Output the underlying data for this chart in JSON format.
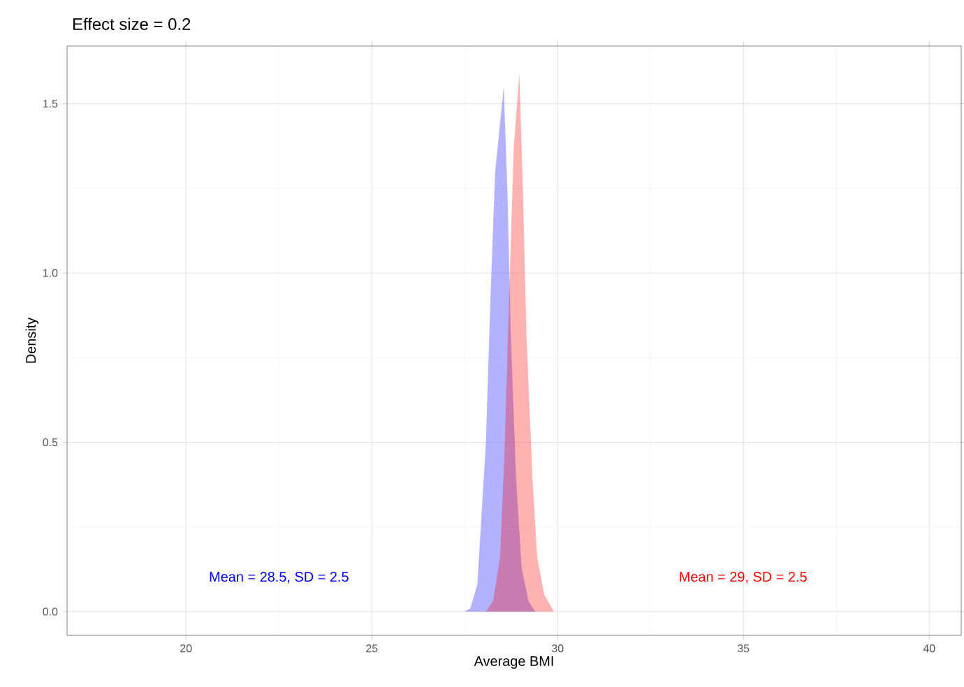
{
  "chart_data": {
    "type": "area",
    "title": "Effect size = 0.2",
    "xlabel": "Average BMI",
    "ylabel": "Density",
    "xlim": [
      16.8,
      40.86
    ],
    "ylim": [
      -0.07,
      1.67
    ],
    "xticks": [
      20,
      25,
      30,
      35,
      40
    ],
    "yticks": [
      {
        "value": 0,
        "label": "0.0"
      },
      {
        "value": 0.5,
        "label": "0.5"
      },
      {
        "value": 1,
        "label": "1.0"
      },
      {
        "value": 1.5,
        "label": "1.5"
      }
    ],
    "grid": true,
    "series": [
      {
        "color": "#0000ff",
        "x": [
          27.5,
          27.65,
          27.84,
          28.07,
          28.2,
          28.32,
          28.55,
          28.65,
          28.74,
          28.88,
          29.03,
          29.22,
          29.4
        ],
        "values": [
          0,
          0.01,
          0.08,
          0.5,
          0.95,
          1.3,
          1.55,
          1.24,
          0.82,
          0.4,
          0.13,
          0.03,
          0
        ]
      },
      {
        "color": "#ff0000",
        "x": [
          28.07,
          28.26,
          28.45,
          28.57,
          28.7,
          28.82,
          28.97,
          29.07,
          29.16,
          29.32,
          29.45,
          29.64,
          29.9
        ],
        "values": [
          0,
          0.03,
          0.16,
          0.47,
          0.95,
          1.37,
          1.59,
          1.23,
          0.82,
          0.4,
          0.16,
          0.05,
          0
        ]
      }
    ],
    "annotations": [
      "Mean = 28.5, SD = 2.5",
      "Mean = 29, SD = 2.5"
    ]
  }
}
